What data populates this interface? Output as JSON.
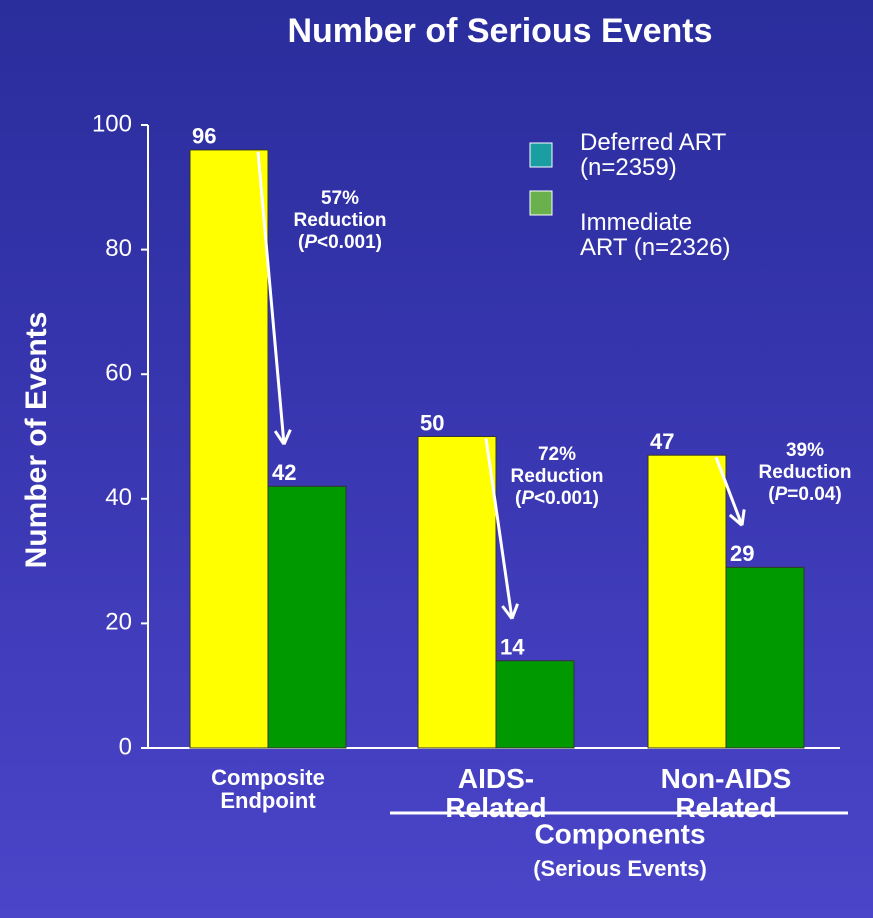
{
  "chart_data": {
    "type": "bar",
    "title": "Number of Serious Events",
    "y_label": "Number of Events",
    "categories": [
      "Composite Endpoint",
      "AIDS-Related",
      "Non-AIDS Related"
    ],
    "series": [
      {
        "name": "Deferred ART (n=2359)",
        "color": "#ffff00",
        "legend_color": "#1a9ea2",
        "values": [
          96,
          50,
          47
        ]
      },
      {
        "name": "Immediate ART (n=2326)",
        "color": "#009900",
        "legend_color": "#6ab04c",
        "values": [
          42,
          14,
          29
        ]
      }
    ],
    "ylim": [
      0,
      100
    ],
    "yticks": [
      0,
      20,
      40,
      60,
      80,
      100
    ],
    "annotations": [
      {
        "lines": [
          "57%",
          "Reduction"
        ],
        "p_parts": [
          "(",
          "P",
          "<0.001)"
        ]
      },
      {
        "lines": [
          "72%",
          "Reduction"
        ],
        "p_parts": [
          "(",
          "P",
          "<0.001)"
        ]
      },
      {
        "lines": [
          "39%",
          "Reduction"
        ],
        "p_parts": [
          "(",
          "P",
          "=0.04)"
        ]
      }
    ],
    "group_label": {
      "title": "Components",
      "subtitle": "(Serious Events)"
    }
  }
}
